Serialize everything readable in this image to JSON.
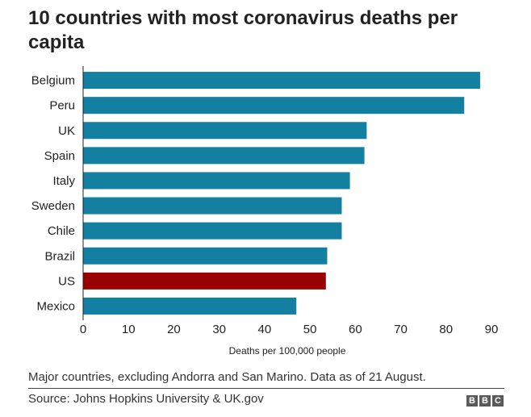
{
  "title": "10 countries with most coronavirus deaths per capita",
  "chart_data": {
    "type": "bar",
    "orientation": "horizontal",
    "title": "10 countries with most coronavirus deaths per capita",
    "xlabel": "Deaths per 100,000 people",
    "ylabel": "",
    "categories": [
      "Belgium",
      "Peru",
      "UK",
      "Spain",
      "Italy",
      "Sweden",
      "Chile",
      "Brazil",
      "US",
      "Mexico"
    ],
    "values": [
      87.5,
      84,
      62.5,
      62,
      58.8,
      57,
      57,
      53.8,
      53.5,
      47
    ],
    "xlim": [
      0,
      90
    ],
    "xticks": [
      0,
      10,
      20,
      30,
      40,
      50,
      60,
      70,
      80,
      90
    ],
    "grid": false,
    "colors": {
      "default": "#1380A1",
      "highlight": "#990000",
      "highlight_category": "US"
    }
  },
  "footnote": "Major countries, excluding Andorra and San Marino. Data as of 21 August.",
  "source": "Source: Johns Hopkins University & UK.gov",
  "logo": {
    "letters": [
      "B",
      "B",
      "C"
    ],
    "name": "bbc-logo"
  }
}
